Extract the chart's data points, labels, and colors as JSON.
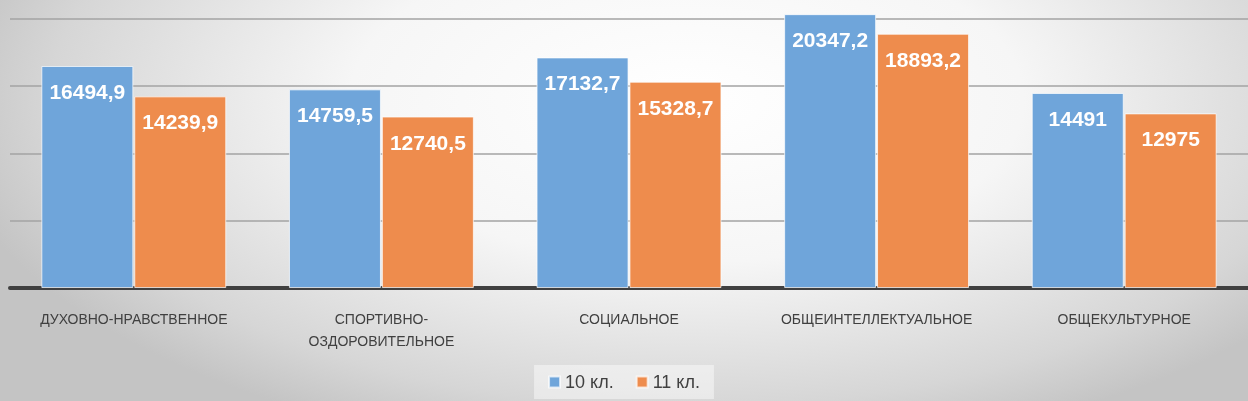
{
  "chart_data": {
    "type": "bar",
    "categories": [
      "ДУХОВНО-НРАВСТВЕННОЕ",
      "СПОРТИВНО-ОЗДОРОВИТЕЛЬНОЕ",
      "СОЦИАЛЬНОЕ",
      "ОБЩЕИНТЕЛЛЕКТУАЛЬНОЕ",
      "ОБЩЕКУЛЬТУРНОЕ"
    ],
    "series": [
      {
        "name": "10 кл.",
        "color": "#6fa5da",
        "values": [
          16494.9,
          14759.5,
          17132.7,
          20347.2,
          14491
        ],
        "value_labels": [
          "16494,9",
          "14759,5",
          "17132,7",
          "20347,2",
          "14491"
        ]
      },
      {
        "name": "11 кл.",
        "color": "#ee8c4d",
        "values": [
          14239.9,
          12740.5,
          15328.7,
          18893.2,
          12975
        ],
        "value_labels": [
          "14239,9",
          "12740,5",
          "15328,7",
          "18893,2",
          "12975"
        ]
      }
    ],
    "ylim": [
      0,
      21400
    ],
    "yticks": [
      {
        "value": 0,
        "label": null
      },
      {
        "value": 5000,
        "label": null
      },
      {
        "value": 10000,
        "label": null
      },
      {
        "value": 15000,
        "label": null
      },
      {
        "value": 20000,
        "label": null
      }
    ],
    "grid": "y",
    "legend": "bottom",
    "tick_labels": "x"
  }
}
